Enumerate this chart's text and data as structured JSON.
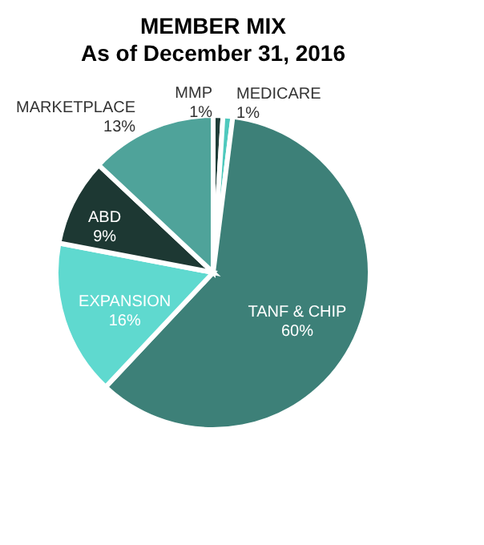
{
  "chart_data": {
    "type": "pie",
    "title": "MEMBER MIX",
    "subtitle": "As of December 31, 2016",
    "categories": [
      "MMP",
      "MEDICARE",
      "TANF & CHIP",
      "EXPANSION",
      "ABD",
      "MARKETPLACE"
    ],
    "values": [
      1,
      1,
      60,
      16,
      9,
      13
    ],
    "value_labels": [
      "1%",
      "1%",
      "60%",
      "16%",
      "9%",
      "13%"
    ],
    "colors": [
      "#1e3d38",
      "#4fc9bd",
      "#3d8078",
      "#5fd9cf",
      "#1d3833",
      "#4fa39a"
    ]
  }
}
